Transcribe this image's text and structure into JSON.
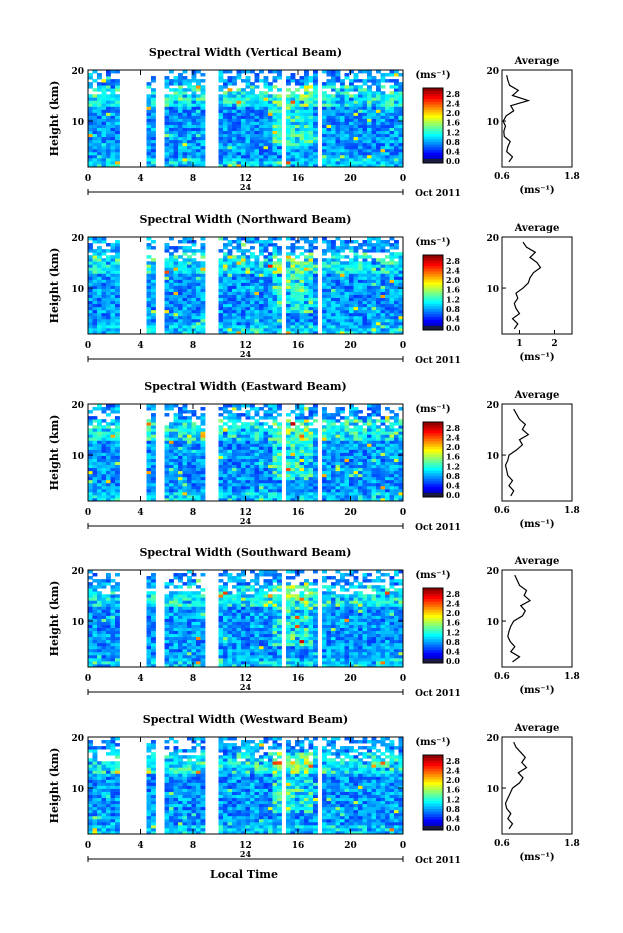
{
  "figure": {
    "xlabel": "Local Time",
    "date_label": "Oct 2011",
    "day_label": "24",
    "cbar_unit": "(ms⁻¹)",
    "avg_title": "Average",
    "avg_xlabel": "(ms⁻¹)",
    "ylabel": "Height (km)"
  },
  "chart_data": [
    {
      "type": "heatmap",
      "title": "Spectral Width (Vertical Beam)",
      "xlabel": "Local Time",
      "ylabel": "Height (km)",
      "x_ticks": [
        "0",
        "4",
        "8",
        "12",
        "16",
        "20",
        "0"
      ],
      "y_ticks": [
        "10",
        "20"
      ],
      "xlim": [
        0,
        24
      ],
      "ylim": [
        1,
        20
      ],
      "colorbar": {
        "label": "(ms⁻¹)",
        "ticks": [
          "0.0",
          "0.4",
          "0.8",
          "1.2",
          "1.6",
          "2.0",
          "2.4",
          "2.8"
        ],
        "range": [
          0,
          2.8
        ]
      },
      "data_gaps_hours": [
        [
          2.3,
          4.5
        ],
        [
          5.2,
          5.7
        ],
        [
          8.9,
          10.0
        ],
        [
          14.6,
          15.0
        ],
        [
          17.6,
          17.9
        ]
      ],
      "average_profile": {
        "title": "Average",
        "xlabel": "(ms⁻¹)",
        "x_ticks": [
          "0.6",
          "1.8"
        ],
        "xlim": [
          0.6,
          1.8
        ],
        "heights": [
          2,
          3,
          4,
          5,
          6,
          7,
          8,
          9,
          10,
          11,
          12,
          13,
          14,
          15,
          16,
          17,
          18,
          19
        ],
        "values": [
          0.72,
          0.78,
          0.68,
          0.7,
          0.74,
          0.64,
          0.63,
          0.66,
          0.62,
          0.67,
          0.8,
          0.75,
          1.05,
          0.78,
          0.88,
          0.73,
          0.7,
          0.68
        ]
      }
    },
    {
      "type": "heatmap",
      "title": "Spectral Width (Northward Beam)",
      "xlabel": "Local Time",
      "ylabel": "Height (km)",
      "x_ticks": [
        "0",
        "4",
        "8",
        "12",
        "16",
        "20",
        "0"
      ],
      "y_ticks": [
        "10",
        "20"
      ],
      "xlim": [
        0,
        24
      ],
      "ylim": [
        1,
        20
      ],
      "colorbar": {
        "label": "(ms⁻¹)",
        "ticks": [
          "0.0",
          "0.4",
          "0.8",
          "1.2",
          "1.6",
          "2.0",
          "2.4",
          "2.8"
        ],
        "range": [
          0,
          2.8
        ]
      },
      "data_gaps_hours": [
        [
          2.3,
          4.5
        ],
        [
          5.2,
          5.7
        ],
        [
          8.9,
          10.0
        ],
        [
          14.6,
          15.0
        ],
        [
          17.6,
          17.9
        ]
      ],
      "average_profile": {
        "title": "Average",
        "xlabel": "(ms⁻¹)",
        "x_ticks": [
          "1",
          "2"
        ],
        "xlim": [
          0.5,
          2.5
        ],
        "heights": [
          2,
          3,
          4,
          5,
          6,
          7,
          8,
          9,
          10,
          11,
          12,
          13,
          14,
          15,
          16,
          17,
          18,
          19
        ],
        "values": [
          0.85,
          0.95,
          0.8,
          1.0,
          0.9,
          0.85,
          0.95,
          0.9,
          1.1,
          1.25,
          1.3,
          1.4,
          1.6,
          1.5,
          1.3,
          1.45,
          1.2,
          1.1
        ]
      }
    },
    {
      "type": "heatmap",
      "title": "Spectral Width (Eastward Beam)",
      "xlabel": "Local Time",
      "ylabel": "Height (km)",
      "x_ticks": [
        "0",
        "4",
        "8",
        "12",
        "16",
        "20",
        "0"
      ],
      "y_ticks": [
        "10",
        "20"
      ],
      "xlim": [
        0,
        24
      ],
      "ylim": [
        1,
        20
      ],
      "colorbar": {
        "label": "(ms⁻¹)",
        "ticks": [
          "0.0",
          "0.4",
          "0.8",
          "1.2",
          "1.6",
          "2.0",
          "2.4",
          "2.8"
        ],
        "range": [
          0,
          2.8
        ]
      },
      "data_gaps_hours": [
        [
          2.3,
          4.5
        ],
        [
          5.2,
          5.7
        ],
        [
          8.9,
          10.0
        ],
        [
          14.6,
          15.0
        ],
        [
          17.6,
          17.9
        ]
      ],
      "average_profile": {
        "title": "Average",
        "xlabel": "(ms⁻¹)",
        "x_ticks": [
          "0.6",
          "1.8"
        ],
        "xlim": [
          0.6,
          1.8
        ],
        "heights": [
          2,
          3,
          4,
          5,
          6,
          7,
          8,
          9,
          10,
          11,
          12,
          13,
          14,
          15,
          16,
          17,
          18,
          19
        ],
        "values": [
          0.75,
          0.8,
          0.72,
          0.78,
          0.7,
          0.68,
          0.66,
          0.7,
          0.72,
          0.85,
          0.95,
          0.9,
          1.05,
          0.95,
          1.0,
          0.9,
          0.85,
          0.8
        ]
      }
    },
    {
      "type": "heatmap",
      "title": "Spectral Width (Southward Beam)",
      "xlabel": "Local Time",
      "ylabel": "Height (km)",
      "x_ticks": [
        "0",
        "4",
        "8",
        "12",
        "16",
        "20",
        "0"
      ],
      "y_ticks": [
        "10",
        "20"
      ],
      "xlim": [
        0,
        24
      ],
      "ylim": [
        1,
        20
      ],
      "colorbar": {
        "label": "(ms⁻¹)",
        "ticks": [
          "0.0",
          "0.4",
          "0.8",
          "1.2",
          "1.6",
          "2.0",
          "2.4",
          "2.8"
        ],
        "range": [
          0,
          2.8
        ]
      },
      "data_gaps_hours": [
        [
          2.3,
          4.5
        ],
        [
          5.2,
          5.7
        ],
        [
          8.9,
          10.0
        ],
        [
          14.6,
          15.0
        ],
        [
          17.6,
          17.9
        ]
      ],
      "average_profile": {
        "title": "Average",
        "xlabel": "(ms⁻¹)",
        "x_ticks": [
          "0.6",
          "1.8"
        ],
        "xlim": [
          0.6,
          1.8
        ],
        "heights": [
          2,
          3,
          4,
          5,
          6,
          7,
          8,
          9,
          10,
          11,
          12,
          13,
          14,
          15,
          16,
          17,
          18,
          19
        ],
        "values": [
          0.78,
          0.9,
          0.75,
          0.82,
          0.74,
          0.7,
          0.72,
          0.75,
          0.8,
          0.95,
          1.0,
          0.92,
          1.08,
          0.98,
          1.02,
          0.9,
          0.86,
          0.82
        ]
      }
    },
    {
      "type": "heatmap",
      "title": "Spectral Width (Westward Beam)",
      "xlabel": "Local Time",
      "ylabel": "Height (km)",
      "x_ticks": [
        "0",
        "4",
        "8",
        "12",
        "16",
        "20",
        "0"
      ],
      "y_ticks": [
        "10",
        "20"
      ],
      "xlim": [
        0,
        24
      ],
      "ylim": [
        1,
        20
      ],
      "colorbar": {
        "label": "(ms⁻¹)",
        "ticks": [
          "0.0",
          "0.4",
          "0.8",
          "1.2",
          "1.6",
          "2.0",
          "2.4",
          "2.8"
        ],
        "range": [
          0,
          2.8
        ]
      },
      "data_gaps_hours": [
        [
          2.3,
          4.5
        ],
        [
          5.2,
          5.7
        ],
        [
          8.9,
          10.0
        ],
        [
          14.6,
          15.0
        ],
        [
          17.6,
          17.9
        ]
      ],
      "average_profile": {
        "title": "Average",
        "xlabel": "(ms⁻¹)",
        "x_ticks": [
          "0.6",
          "1.8"
        ],
        "xlim": [
          0.6,
          1.8
        ],
        "heights": [
          2,
          3,
          4,
          5,
          6,
          7,
          8,
          9,
          10,
          11,
          12,
          13,
          14,
          15,
          16,
          17,
          18,
          19
        ],
        "values": [
          0.72,
          0.78,
          0.7,
          0.75,
          0.68,
          0.66,
          0.7,
          0.74,
          0.78,
          0.9,
          0.96,
          0.88,
          1.02,
          0.94,
          1.0,
          0.92,
          0.84,
          0.8
        ]
      }
    }
  ]
}
